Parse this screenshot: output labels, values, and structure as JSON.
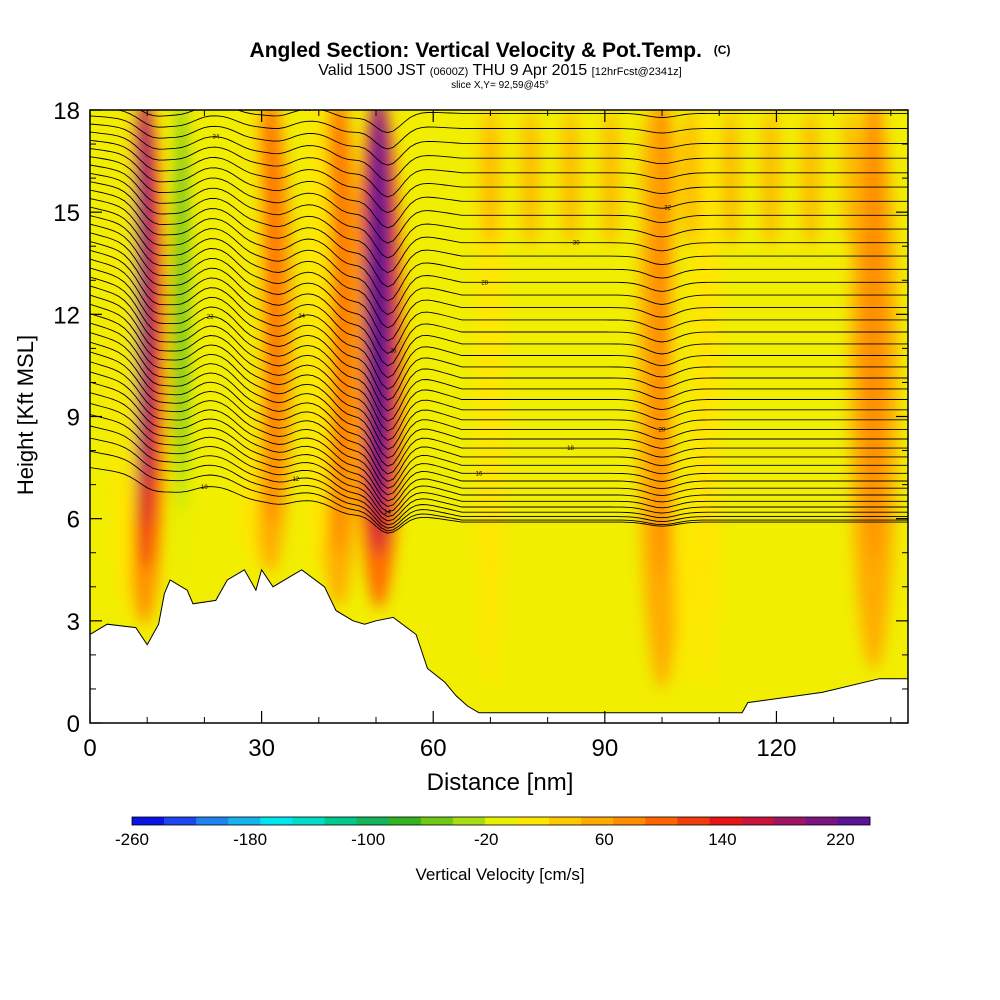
{
  "header": {
    "title": "Angled Section: Vertical Velocity & Pot.Temp.",
    "title_mark": "(C)",
    "valid_prefix": "Valid 1500 JST",
    "valid_zulu": "(0600Z)",
    "valid_date": "THU 9 Apr 2015",
    "forecast": "[12hrFcst@2341z]",
    "slice": "slice X,Y= 92,59@45°"
  },
  "chart_data": {
    "type": "heatmap",
    "title": "Angled Section: Vertical Velocity & Pot.Temp.",
    "xlabel": "Distance [nm]",
    "ylabel": "Height [Kft MSL]",
    "xlim": [
      0,
      143
    ],
    "ylim": [
      0,
      18
    ],
    "x_ticks": [
      "0",
      "30",
      "60",
      "90",
      "120"
    ],
    "x_tick_values": [
      0,
      30,
      60,
      90,
      120
    ],
    "y_ticks": [
      "0",
      "3",
      "6",
      "9",
      "12",
      "15",
      "18"
    ],
    "y_tick_values": [
      0,
      3,
      6,
      9,
      12,
      15,
      18
    ],
    "colorbar": {
      "label": "Vertical Velocity [cm/s]",
      "tick_labels": [
        "-260",
        "-180",
        "-100",
        "-20",
        "60",
        "140",
        "220"
      ],
      "tick_values": [
        -260,
        -180,
        -100,
        -20,
        60,
        140,
        220
      ],
      "colors": [
        "#0a14e6",
        "#1e46f0",
        "#1e82f0",
        "#14b4f0",
        "#00e6f0",
        "#00dcc8",
        "#00c88c",
        "#14b45a",
        "#32b41e",
        "#6ec814",
        "#aadc14",
        "#e6f000",
        "#ffe600",
        "#ffc800",
        "#ffaa00",
        "#ff8c00",
        "#ff6400",
        "#f03c0a",
        "#e61414",
        "#c8143c",
        "#a01464",
        "#7a1480",
        "#5a1496"
      ]
    },
    "updrafts": [
      {
        "x": 11,
        "peak": 150
      },
      {
        "x": 52,
        "peak": 240
      },
      {
        "x": 33,
        "peak": 60
      },
      {
        "x": 45,
        "peak": 60
      },
      {
        "x": 100,
        "peak": 40
      },
      {
        "x": 137,
        "peak": 40
      }
    ],
    "downdrafts": [
      {
        "x": 16,
        "peak": -100
      },
      {
        "x": 6,
        "peak": -40
      },
      {
        "x": 28,
        "peak": -40
      },
      {
        "x": 40,
        "peak": -30
      },
      {
        "x": 104,
        "peak": -40
      },
      {
        "x": 108,
        "peak": -30
      },
      {
        "x": 70,
        "peak": -30
      }
    ],
    "terrain": [
      {
        "x": 0,
        "h": 2.6
      },
      {
        "x": 3,
        "h": 2.9
      },
      {
        "x": 8,
        "h": 2.8
      },
      {
        "x": 10,
        "h": 2.3
      },
      {
        "x": 12,
        "h": 2.9
      },
      {
        "x": 13,
        "h": 3.8
      },
      {
        "x": 14,
        "h": 4.2
      },
      {
        "x": 17,
        "h": 3.9
      },
      {
        "x": 18,
        "h": 3.5
      },
      {
        "x": 22,
        "h": 3.6
      },
      {
        "x": 24,
        "h": 4.2
      },
      {
        "x": 27,
        "h": 4.5
      },
      {
        "x": 29,
        "h": 3.9
      },
      {
        "x": 30,
        "h": 4.5
      },
      {
        "x": 32,
        "h": 4.0
      },
      {
        "x": 35,
        "h": 4.3
      },
      {
        "x": 37,
        "h": 4.5
      },
      {
        "x": 41,
        "h": 4.0
      },
      {
        "x": 43,
        "h": 3.3
      },
      {
        "x": 46,
        "h": 3.0
      },
      {
        "x": 48,
        "h": 2.9
      },
      {
        "x": 50,
        "h": 3.0
      },
      {
        "x": 53,
        "h": 3.1
      },
      {
        "x": 57,
        "h": 2.6
      },
      {
        "x": 59,
        "h": 1.6
      },
      {
        "x": 62,
        "h": 1.2
      },
      {
        "x": 64,
        "h": 0.8
      },
      {
        "x": 66,
        "h": 0.5
      },
      {
        "x": 68,
        "h": 0.3
      },
      {
        "x": 75,
        "h": 0.3
      },
      {
        "x": 100,
        "h": 0.3
      },
      {
        "x": 114,
        "h": 0.3
      },
      {
        "x": 115,
        "h": 0.6
      },
      {
        "x": 128,
        "h": 0.9
      },
      {
        "x": 138,
        "h": 1.3
      },
      {
        "x": 143,
        "h": 1.3
      }
    ],
    "isentropes": {
      "count": 40,
      "labels": [
        "10",
        "12",
        "14",
        "16",
        "18",
        "20",
        "22",
        "24",
        "26",
        "28",
        "30",
        "32",
        "34",
        "36",
        "38",
        "40"
      ]
    }
  }
}
